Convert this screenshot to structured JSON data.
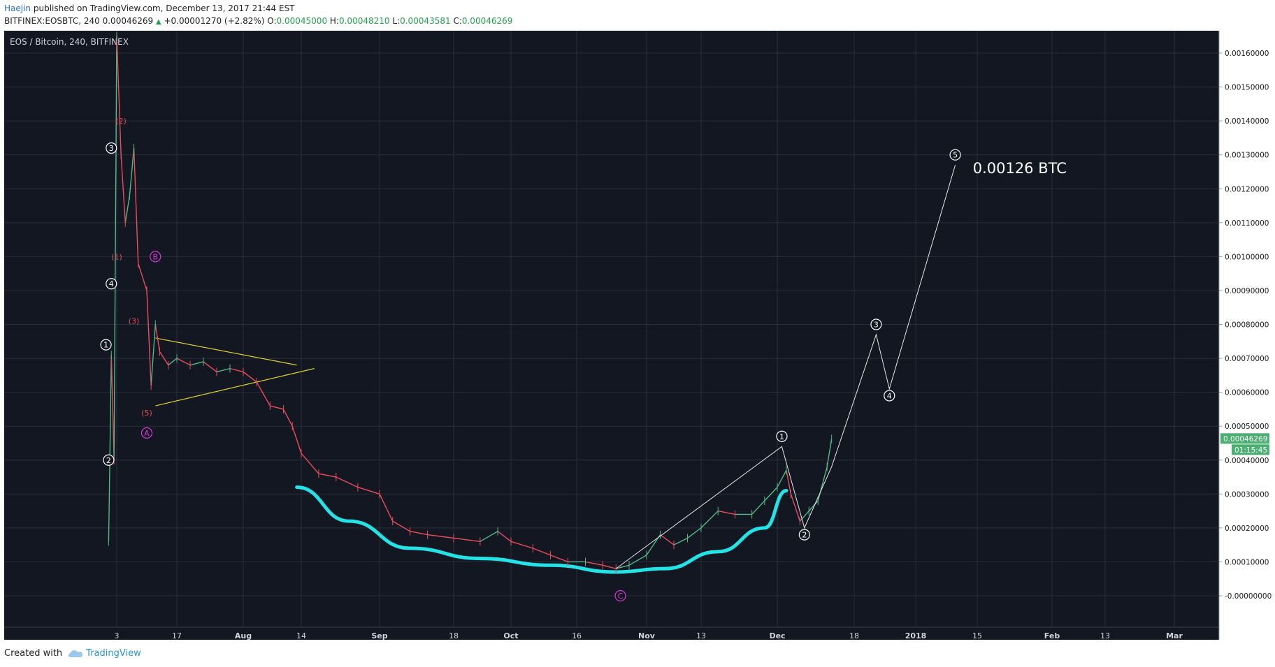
{
  "header": {
    "author": "Haejin",
    "published_text": "published on TradingView.com, December 13, 2017 21:44 EST"
  },
  "ohlc": {
    "symbol": "BITFINEX:EOSBTC, 240",
    "last": "0.00046269",
    "change": "+0.00001270 (+2.82%)",
    "o_label": "O:",
    "o": "0.00045000",
    "h_label": "H:",
    "h": "0.00048210",
    "l_label": "L:",
    "l": "0.00043581",
    "c_label": "C:",
    "c": "0.00046269"
  },
  "footer": {
    "created_with": "Created with",
    "brand": "TradingView"
  },
  "chart_data": {
    "type": "line",
    "title": "EOS / Bitcoin, 240, BITFINEX",
    "xlabel": "",
    "ylabel": "",
    "ylim": [
      -0.0001,
      0.0017
    ],
    "grid": true,
    "y_ticks": [
      "0.00160000",
      "0.00150000",
      "0.00140000",
      "0.00130000",
      "0.00120000",
      "0.00110000",
      "0.00100000",
      "0.00090000",
      "0.00080000",
      "0.00070000",
      "0.00060000",
      "0.00050000",
      "0.00040000",
      "0.00030000",
      "0.00020000",
      "0.00010000",
      "-0.00000000"
    ],
    "y_tick_values": [
      0.0016,
      0.0015,
      0.0014,
      0.0013,
      0.0012,
      0.0011,
      0.001,
      0.0009,
      0.0008,
      0.0007,
      0.0006,
      0.0005,
      0.0004,
      0.0003,
      0.0002,
      0.0001,
      0.0
    ],
    "x_ticks": [
      "3",
      "17",
      "Aug",
      "14",
      "Sep",
      "18",
      "Oct",
      "16",
      "Nov",
      "13",
      "Dec",
      "18",
      "2018",
      "15",
      "Feb",
      "13",
      "Mar"
    ],
    "x_tick_dates": [
      "2017-07-03",
      "2017-07-17",
      "2017-08-01",
      "2017-08-14",
      "2017-09-01",
      "2017-09-18",
      "2017-10-01",
      "2017-10-16",
      "2017-11-01",
      "2017-11-13",
      "2017-12-01",
      "2017-12-18",
      "2018-01-01",
      "2018-01-15",
      "2018-02-01",
      "2018-02-13",
      "2018-03-01"
    ],
    "price_series": {
      "name": "EOSBTC",
      "x": [
        "2017-06-30",
        "2017-07-01",
        "2017-07-02",
        "2017-07-03",
        "2017-07-04",
        "2017-07-05",
        "2017-07-06",
        "2017-07-07",
        "2017-07-08",
        "2017-07-10",
        "2017-07-11",
        "2017-07-12",
        "2017-07-13",
        "2017-07-15",
        "2017-07-17",
        "2017-07-20",
        "2017-07-23",
        "2017-07-26",
        "2017-07-29",
        "2017-08-01",
        "2017-08-04",
        "2017-08-07",
        "2017-08-10",
        "2017-08-12",
        "2017-08-14",
        "2017-08-18",
        "2017-08-22",
        "2017-08-27",
        "2017-09-01",
        "2017-09-04",
        "2017-09-08",
        "2017-09-12",
        "2017-09-18",
        "2017-09-24",
        "2017-09-28",
        "2017-10-01",
        "2017-10-06",
        "2017-10-10",
        "2017-10-14",
        "2017-10-18",
        "2017-10-22",
        "2017-10-25",
        "2017-10-28",
        "2017-11-01",
        "2017-11-04",
        "2017-11-07",
        "2017-11-10",
        "2017-11-13",
        "2017-11-17",
        "2017-11-21",
        "2017-11-25",
        "2017-11-28",
        "2017-12-01",
        "2017-12-03",
        "2017-12-04",
        "2017-12-06",
        "2017-12-08",
        "2017-12-10",
        "2017-12-12",
        "2017-12-13"
      ],
      "values": [
        0.00016,
        0.00071,
        0.0004,
        0.00165,
        0.0013,
        0.0011,
        0.00118,
        0.00132,
        0.00098,
        0.0009,
        0.00062,
        0.0008,
        0.00072,
        0.00068,
        0.0007,
        0.00068,
        0.00069,
        0.00066,
        0.00067,
        0.00066,
        0.00063,
        0.00056,
        0.00055,
        0.0005,
        0.00042,
        0.00036,
        0.00035,
        0.00032,
        0.0003,
        0.00022,
        0.00019,
        0.00018,
        0.00017,
        0.00016,
        0.00019,
        0.00016,
        0.00014,
        0.00012,
        0.0001,
        0.0001,
        9e-05,
        8e-05,
        9e-05,
        0.00012,
        0.00018,
        0.00015,
        0.00017,
        0.0002,
        0.00025,
        0.00024,
        0.00024,
        0.00028,
        0.00032,
        0.00037,
        0.0003,
        0.00022,
        0.00025,
        0.00028,
        0.00038,
        0.00046269
      ]
    },
    "last_price_label": "0.00046269",
    "countdown_label": "01:15:45",
    "annotations": [
      {
        "text": "3",
        "style": "white-circle",
        "x": "2017-07-01",
        "y": 0.00132
      },
      {
        "text": "4",
        "style": "white-circle",
        "x": "2017-07-01",
        "y": 0.00092
      },
      {
        "text": "1",
        "style": "white-circle",
        "x": "2017-06-29",
        "y": 0.00074
      },
      {
        "text": "2",
        "style": "white-circle",
        "x": "2017-06-30",
        "y": 0.0004
      },
      {
        "text": "(2)",
        "style": "red",
        "x": "2017-07-04",
        "y": 0.0014
      },
      {
        "text": "(1)",
        "style": "red",
        "x": "2017-07-03",
        "y": 0.001
      },
      {
        "text": "(3)",
        "style": "red",
        "x": "2017-07-07",
        "y": 0.00081
      },
      {
        "text": "(5)",
        "style": "red",
        "x": "2017-07-10",
        "y": 0.00054
      },
      {
        "text": "B",
        "style": "magenta-circle",
        "x": "2017-07-12",
        "y": 0.001
      },
      {
        "text": "A",
        "style": "magenta-circle",
        "x": "2017-07-10",
        "y": 0.00048
      },
      {
        "text": "C",
        "style": "magenta-circle",
        "x": "2017-10-26",
        "y": 0.0
      },
      {
        "text": "1",
        "style": "white-circle",
        "x": "2017-12-02",
        "y": 0.00047
      },
      {
        "text": "2",
        "style": "white-circle",
        "x": "2017-12-07",
        "y": 0.00018
      },
      {
        "text": "3",
        "style": "white-circle",
        "x": "2017-12-23",
        "y": 0.0008
      },
      {
        "text": "4",
        "style": "white-circle",
        "x": "2017-12-26",
        "y": 0.00059
      },
      {
        "text": "5",
        "style": "white-circle",
        "x": "2018-01-10",
        "y": 0.0013
      }
    ],
    "target_label": "0.00126 BTC",
    "projection_path": {
      "x": [
        "2017-10-25",
        "2017-12-02",
        "2017-12-07",
        "2017-12-13",
        "2017-12-23",
        "2017-12-26",
        "2018-01-10"
      ],
      "y": [
        8e-05,
        0.00044,
        0.0002,
        0.00038,
        0.00077,
        0.00061,
        0.00127
      ]
    },
    "trendlines": [
      {
        "color": "#e0d12a",
        "x": [
          "2017-07-12",
          "2017-08-13"
        ],
        "y": [
          0.00076,
          0.00068
        ]
      },
      {
        "color": "#e0d12a",
        "x": [
          "2017-07-12",
          "2017-08-17"
        ],
        "y": [
          0.00056,
          0.00067
        ]
      }
    ],
    "curve": {
      "color": "#22e3e6",
      "x": [
        "2017-08-13",
        "2017-08-25",
        "2017-09-08",
        "2017-09-24",
        "2017-10-10",
        "2017-10-25",
        "2017-11-05",
        "2017-11-17",
        "2017-11-28",
        "2017-12-03"
      ],
      "y": [
        0.00032,
        0.00022,
        0.00014,
        0.00011,
        9e-05,
        7e-05,
        8e-05,
        0.00013,
        0.0002,
        0.00031
      ]
    }
  }
}
